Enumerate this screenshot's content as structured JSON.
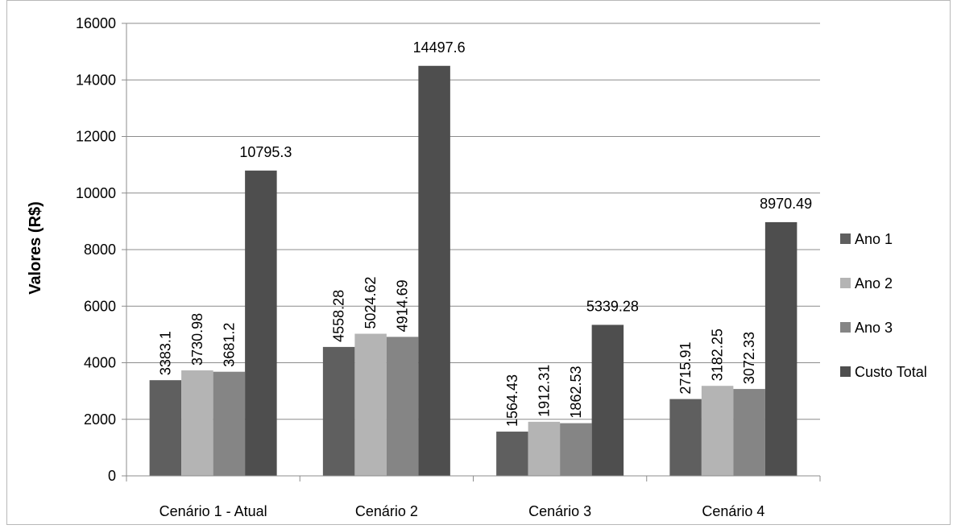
{
  "chart_data": {
    "type": "bar",
    "ylabel": "Valores (R$)",
    "xlabel": "",
    "ylim": [
      0,
      16000
    ],
    "yticks": [
      0,
      2000,
      4000,
      6000,
      8000,
      10000,
      12000,
      14000,
      16000
    ],
    "grid": "horizontal",
    "legend_position": "right",
    "categories": [
      "Cenário 1 - Atual",
      "Cenário 2",
      "Cenário 3",
      "Cenário 4"
    ],
    "series": [
      {
        "name": "Ano 1",
        "color": "#5f5f5f",
        "values": [
          3383.1,
          4558.28,
          1564.43,
          2715.91
        ],
        "labels": [
          "3383.1",
          "4558.28",
          "1564.43",
          "2715.91"
        ],
        "label_rotation": "vertical"
      },
      {
        "name": "Ano 2",
        "color": "#b4b4b4",
        "values": [
          3730.98,
          5024.62,
          1912.31,
          3182.25
        ],
        "labels": [
          "3730.98",
          "5024.62",
          "1912.31",
          "3182.25"
        ],
        "label_rotation": "vertical"
      },
      {
        "name": "Ano 3",
        "color": "#858585",
        "values": [
          3681.2,
          4914.69,
          1862.53,
          3072.33
        ],
        "labels": [
          "3681.2",
          "4914.69",
          "1862.53",
          "3072.33"
        ],
        "label_rotation": "vertical"
      },
      {
        "name": "Custo Total",
        "color": "#4e4e4e",
        "values": [
          10795.3,
          14497.6,
          5339.28,
          8970.49
        ],
        "labels": [
          "10795.3",
          "14497.6",
          "5339.28",
          "8970.49"
        ],
        "label_rotation": "horizontal"
      }
    ]
  }
}
